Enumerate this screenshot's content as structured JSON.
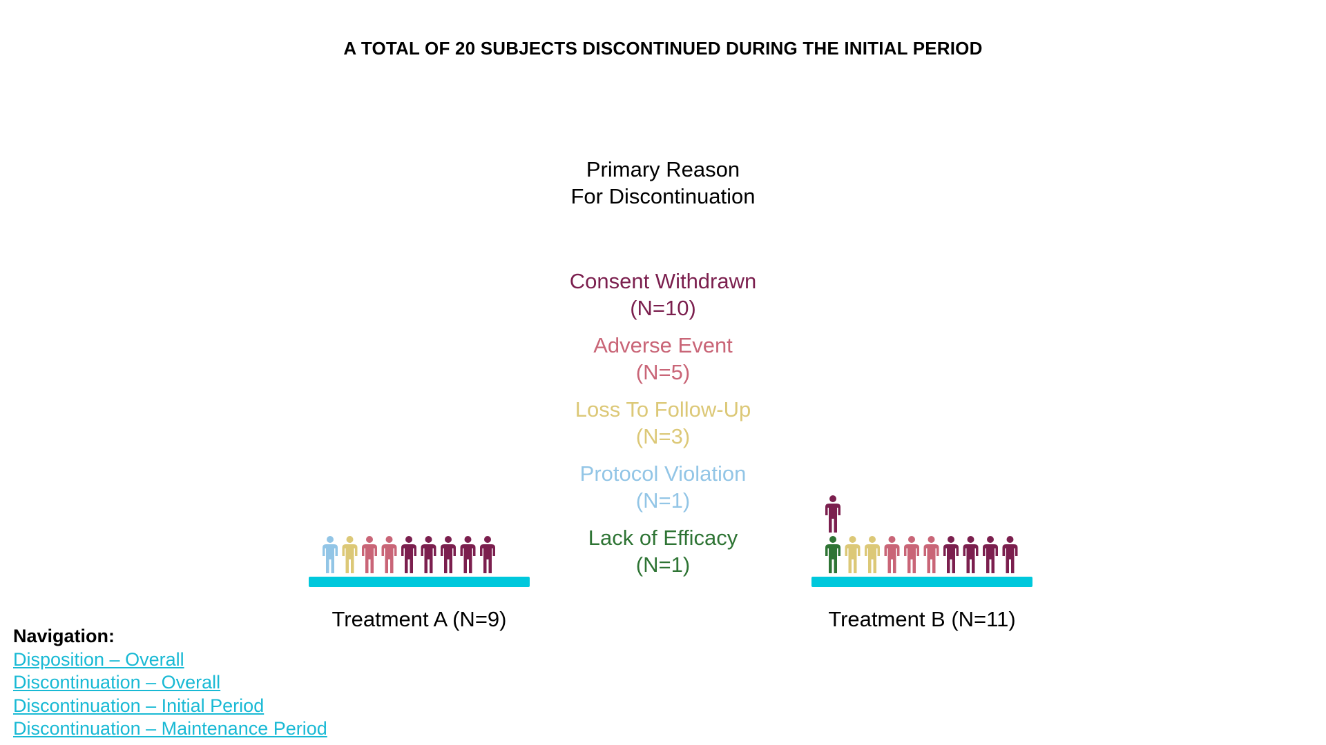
{
  "title": "A TOTAL OF 20 SUBJECTS DISCONTINUED DURING THE INITIAL PERIOD",
  "legend": {
    "heading_line1": "Primary Reason",
    "heading_line2": "For Discontinuation",
    "items": [
      {
        "label": "Consent Withdrawn",
        "count_text": "(N=10)",
        "color": "#7b1f4e",
        "icon": "person-icon"
      },
      {
        "label": "Adverse Event",
        "count_text": "(N=5)",
        "color": "#c96577",
        "icon": "person-icon"
      },
      {
        "label": "Loss To Follow-Up",
        "count_text": "(N=3)",
        "color": "#dcc877",
        "icon": "person-icon"
      },
      {
        "label": "Protocol Violation",
        "count_text": "(N=1)",
        "color": "#92c5e6",
        "icon": "person-icon"
      },
      {
        "label": "Lack of Efficacy",
        "count_text": "(N=1)",
        "color": "#2e7434",
        "icon": "person-icon"
      }
    ]
  },
  "platform_color": "#00c8dc",
  "groups": [
    {
      "label": "Treatment A (N=9)",
      "total": 9,
      "row": [
        "Protocol Violation",
        "Loss To Follow-Up",
        "Adverse Event",
        "Adverse Event",
        "Consent Withdrawn",
        "Consent Withdrawn",
        "Consent Withdrawn",
        "Consent Withdrawn",
        "Consent Withdrawn"
      ],
      "stacked": []
    },
    {
      "label": "Treatment B (N=11)",
      "total": 11,
      "row": [
        "Lack of Efficacy",
        "Loss To Follow-Up",
        "Loss To Follow-Up",
        "Adverse Event",
        "Adverse Event",
        "Adverse Event",
        "Consent Withdrawn",
        "Consent Withdrawn",
        "Consent Withdrawn",
        "Consent Withdrawn"
      ],
      "stacked": [
        "Consent Withdrawn"
      ]
    }
  ],
  "navigation": {
    "title": "Navigation:",
    "links": [
      "Disposition – Overall",
      "Discontinuation – Overall",
      "Discontinuation – Initial Period",
      "Discontinuation – Maintenance Period"
    ]
  }
}
